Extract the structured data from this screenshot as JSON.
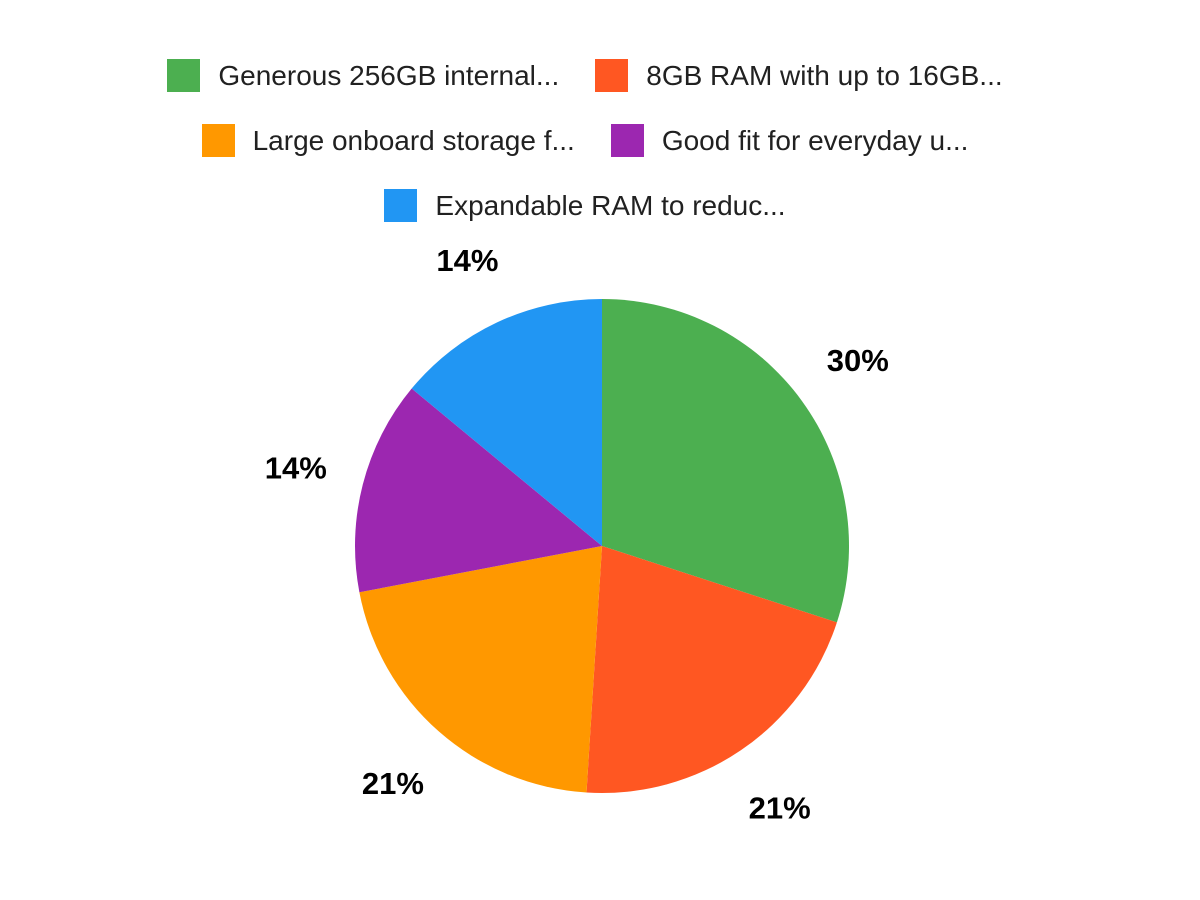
{
  "chart_data": {
    "type": "pie",
    "title": "",
    "labels": [
      "Generous 256GB internal...",
      "8GB RAM with up to 16GB...",
      "Large onboard storage f...",
      "Good fit for everyday u...",
      "Expandable RAM to reduc..."
    ],
    "values": [
      30,
      21,
      21,
      14,
      14
    ],
    "percent_labels": [
      "30%",
      "21%",
      "21%",
      "14%",
      "14%"
    ],
    "colors": [
      "#4caf50",
      "#ff5722",
      "#ff9800",
      "#9c27b0",
      "#2196f3"
    ],
    "start_angle_deg": 0,
    "direction": "clockwise",
    "legend_position": "top",
    "legend_rows": [
      [
        0,
        1
      ],
      [
        2,
        3
      ],
      [
        4
      ]
    ],
    "background": "#ffffff",
    "legend_text_color": "#212121",
    "percent_label_color": "#000000"
  }
}
